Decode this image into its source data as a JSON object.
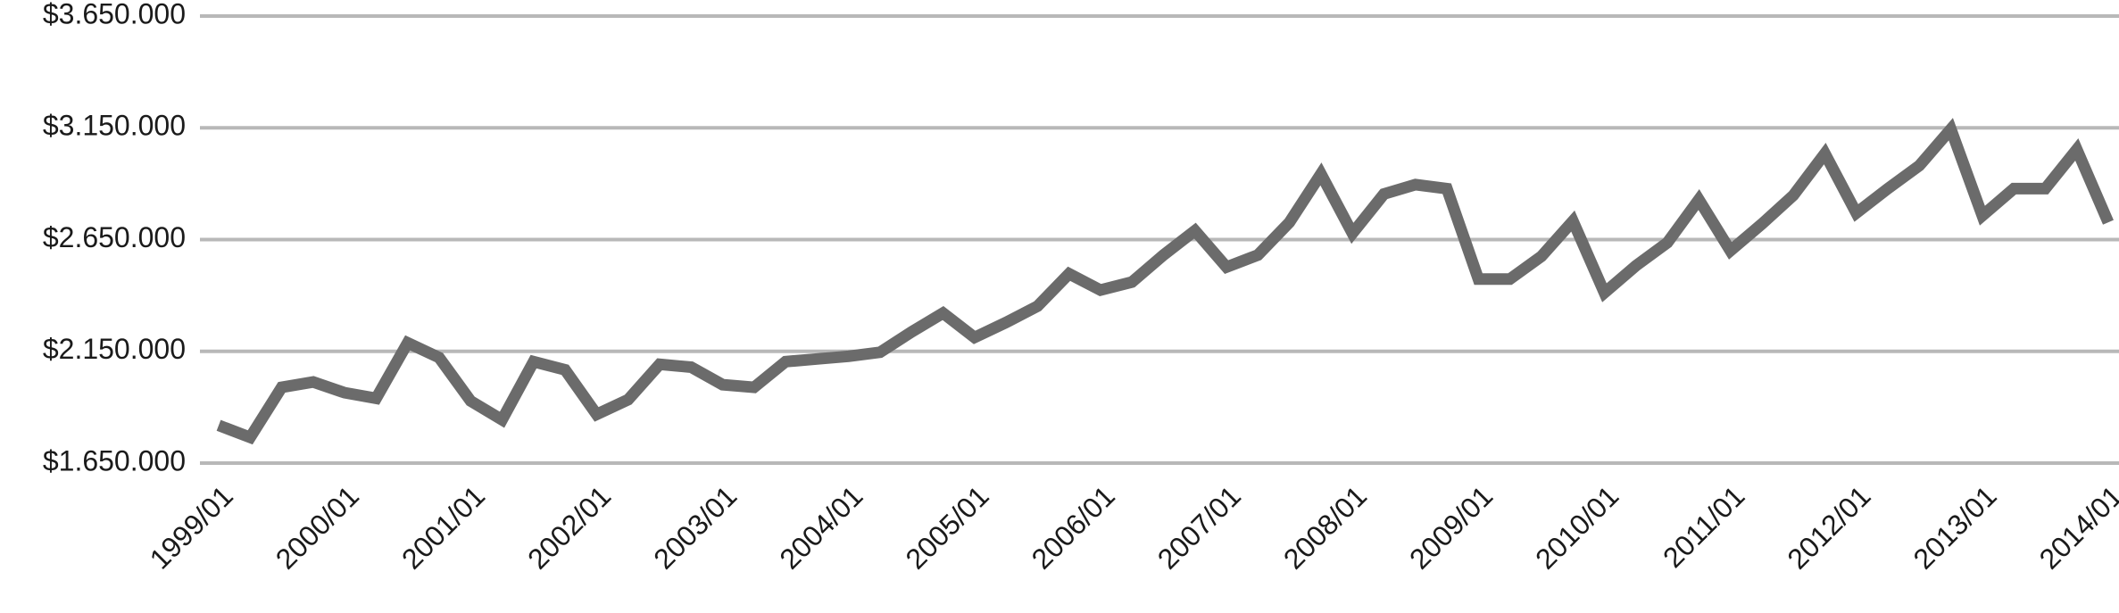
{
  "chart_data": {
    "type": "line",
    "categories": [
      "1999/01",
      null,
      null,
      null,
      "2000/01",
      null,
      null,
      null,
      "2001/01",
      null,
      null,
      null,
      "2002/01",
      null,
      null,
      null,
      "2003/01",
      null,
      null,
      null,
      "2004/01",
      null,
      null,
      null,
      "2005/01",
      null,
      null,
      null,
      "2006/01",
      null,
      null,
      null,
      "2007/01",
      null,
      null,
      null,
      "2008/01",
      null,
      null,
      null,
      "2009/01",
      null,
      null,
      null,
      "2010/01",
      null,
      null,
      null,
      "2011/01",
      null,
      null,
      null,
      "2012/01",
      null,
      null,
      null,
      "2013/01",
      null,
      null,
      null,
      "2014/01"
    ],
    "series": [
      {
        "color": "#6b6b6b",
        "values": [
          1819000,
          1765000,
          1989000,
          2013000,
          1965000,
          1940000,
          2188000,
          2122000,
          1928000,
          1844000,
          2104000,
          2067000,
          1868000,
          1934000,
          2092000,
          2079000,
          2001000,
          1989000,
          2104000,
          2116000,
          2128000,
          2146000,
          2237000,
          2321000,
          2212000,
          2279000,
          2352000,
          2497000,
          2424000,
          2460000,
          2581000,
          2690000,
          2527000,
          2581000,
          2727000,
          2944000,
          2678000,
          2854000,
          2896000,
          2878000,
          2473000,
          2473000,
          2575000,
          2733000,
          2412000,
          2533000,
          2636000,
          2829000,
          2600000,
          2720000,
          2848000,
          3035000,
          2769000,
          2878000,
          2981000,
          3144000,
          2757000,
          2878000,
          2878000,
          3053000,
          2727000
        ]
      }
    ],
    "ylim": [
      1650000,
      3650000
    ],
    "yticks": [
      {
        "value": 1650000,
        "label": "$1.650.000"
      },
      {
        "value": 2150000,
        "label": "$2.150.000"
      },
      {
        "value": 2650000,
        "label": "$2.650.000"
      },
      {
        "value": 3150000,
        "label": "$3.150.000"
      },
      {
        "value": 3650000,
        "label": "$3.650.000"
      }
    ],
    "grid": true
  }
}
